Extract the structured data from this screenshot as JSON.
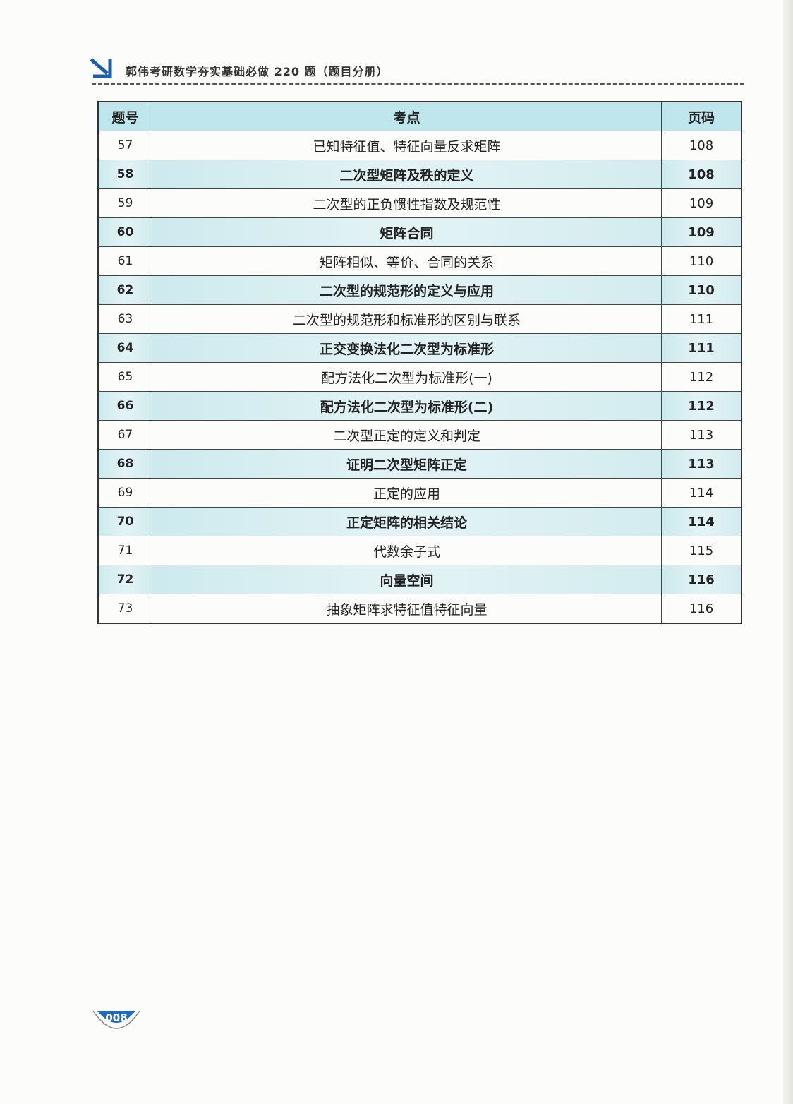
{
  "header": {
    "title": "郭伟考研数学夯实基础必做 220 题（题目分册）",
    "icon": "arrow-down-right-icon"
  },
  "table": {
    "columns": [
      "题号",
      "考点",
      "页码"
    ],
    "rows": [
      {
        "no": "57",
        "topic": "已知特征值、特征向量反求矩阵",
        "page": "108"
      },
      {
        "no": "58",
        "topic": "二次型矩阵及秩的定义",
        "page": "108"
      },
      {
        "no": "59",
        "topic": "二次型的正负惯性指数及规范性",
        "page": "109"
      },
      {
        "no": "60",
        "topic": "矩阵合同",
        "page": "109"
      },
      {
        "no": "61",
        "topic": "矩阵相似、等价、合同的关系",
        "page": "110"
      },
      {
        "no": "62",
        "topic": "二次型的规范形的定义与应用",
        "page": "110"
      },
      {
        "no": "63",
        "topic": "二次型的规范形和标准形的区别与联系",
        "page": "111"
      },
      {
        "no": "64",
        "topic": "正交变换法化二次型为标准形",
        "page": "111"
      },
      {
        "no": "65",
        "topic": "配方法化二次型为标准形(一)",
        "page": "112"
      },
      {
        "no": "66",
        "topic": "配方法化二次型为标准形(二)",
        "page": "112"
      },
      {
        "no": "67",
        "topic": "二次型正定的定义和判定",
        "page": "113"
      },
      {
        "no": "68",
        "topic": "证明二次型矩阵正定",
        "page": "113"
      },
      {
        "no": "69",
        "topic": "正定的应用",
        "page": "114"
      },
      {
        "no": "70",
        "topic": "正定矩阵的相关结论",
        "page": "114"
      },
      {
        "no": "71",
        "topic": "代数余子式",
        "page": "115"
      },
      {
        "no": "72",
        "topic": "向量空间",
        "page": "116"
      },
      {
        "no": "73",
        "topic": "抽象矩阵求特征值特征向量",
        "page": "116"
      }
    ]
  },
  "footer": {
    "page_number": "008"
  }
}
